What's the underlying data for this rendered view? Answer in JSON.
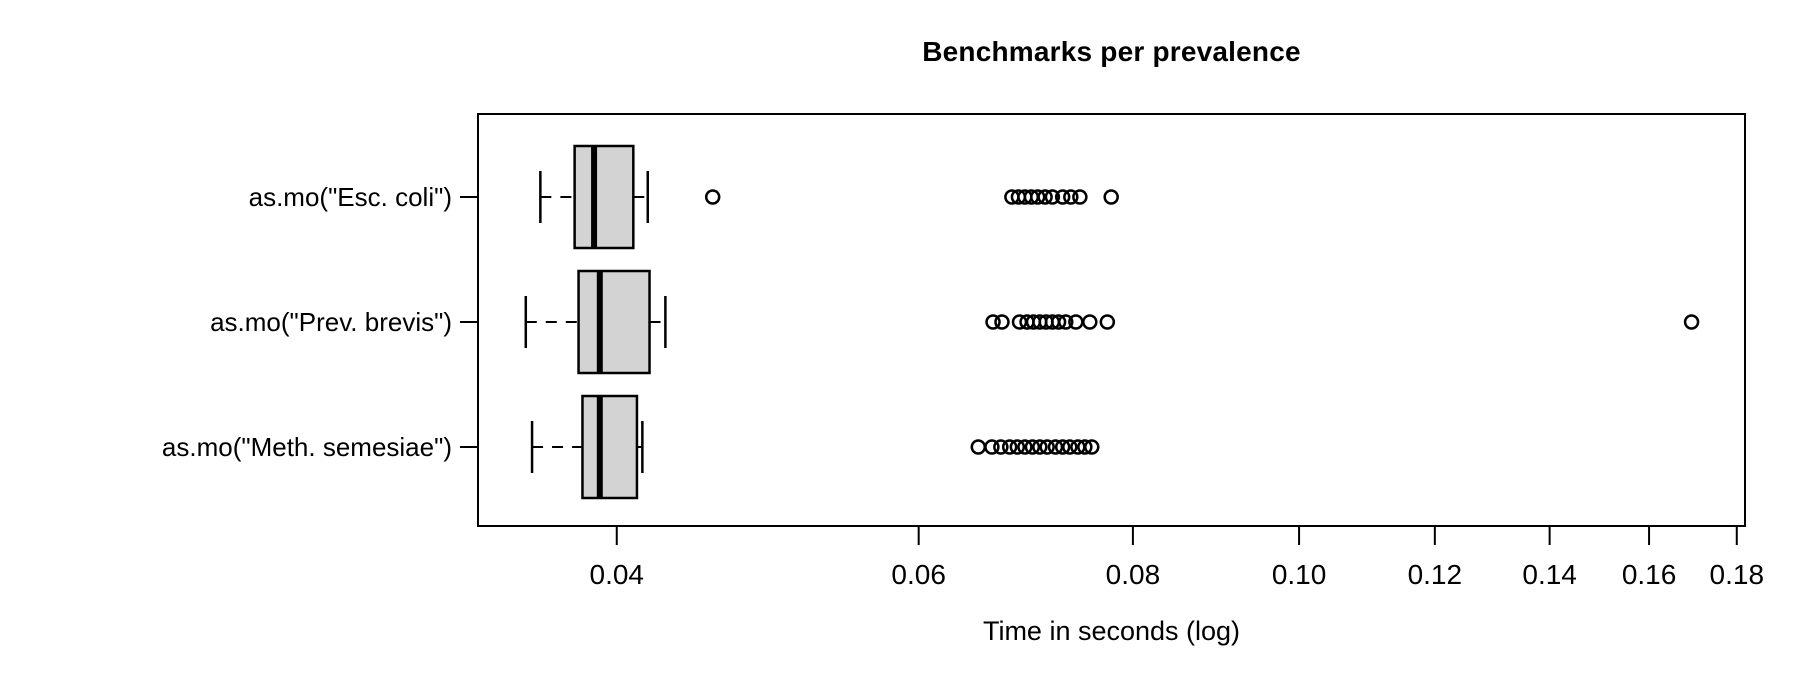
{
  "figure": {
    "title": "Benchmarks per prevalence",
    "xlabel": "Time in seconds (log)"
  },
  "chart_data": {
    "type": "boxplot",
    "orientation": "horizontal",
    "x_scale": "log10",
    "title": "Benchmarks per prevalence",
    "xlabel": "Time in seconds (log)",
    "ylabel": "",
    "grid": false,
    "legend": "none",
    "xlim": [
      0.0332,
      0.182
    ],
    "x_ticks": [
      0.04,
      0.06,
      0.08,
      0.1,
      0.12,
      0.14,
      0.16,
      0.18
    ],
    "x_tick_labels": [
      "0.04",
      "0.06",
      "0.08",
      "0.10",
      "0.12",
      "0.14",
      "0.16",
      "0.18"
    ],
    "box_fill_color": "#d3d3d3",
    "stroke_color": "#000000",
    "series": [
      {
        "label": "as.mo(\"Esc. coli\")",
        "whisker_low": 0.0361,
        "q1": 0.0378,
        "median": 0.0388,
        "q3": 0.0409,
        "whisker_high": 0.0417,
        "outliers": [
          0.0455,
          0.068,
          0.0686,
          0.0692,
          0.0698,
          0.0704,
          0.0711,
          0.0718,
          0.0728,
          0.0736,
          0.0745,
          0.0777
        ]
      },
      {
        "label": "as.mo(\"Prev. brevis\")",
        "whisker_low": 0.0354,
        "q1": 0.038,
        "median": 0.0391,
        "q3": 0.0418,
        "whisker_high": 0.0427,
        "outliers": [
          0.0663,
          0.0671,
          0.0687,
          0.0694,
          0.07,
          0.0706,
          0.0712,
          0.0718,
          0.0724,
          0.0731,
          0.0741,
          0.0755,
          0.0773,
          0.1694
        ]
      },
      {
        "label": "as.mo(\"Meth. semesiae\")",
        "whisker_low": 0.0357,
        "q1": 0.0382,
        "median": 0.0391,
        "q3": 0.0411,
        "whisker_high": 0.0414,
        "outliers": [
          0.065,
          0.0662,
          0.067,
          0.0678,
          0.0685,
          0.0692,
          0.0699,
          0.0706,
          0.0713,
          0.0721,
          0.0728,
          0.0735,
          0.0743,
          0.075,
          0.0757
        ]
      }
    ]
  }
}
